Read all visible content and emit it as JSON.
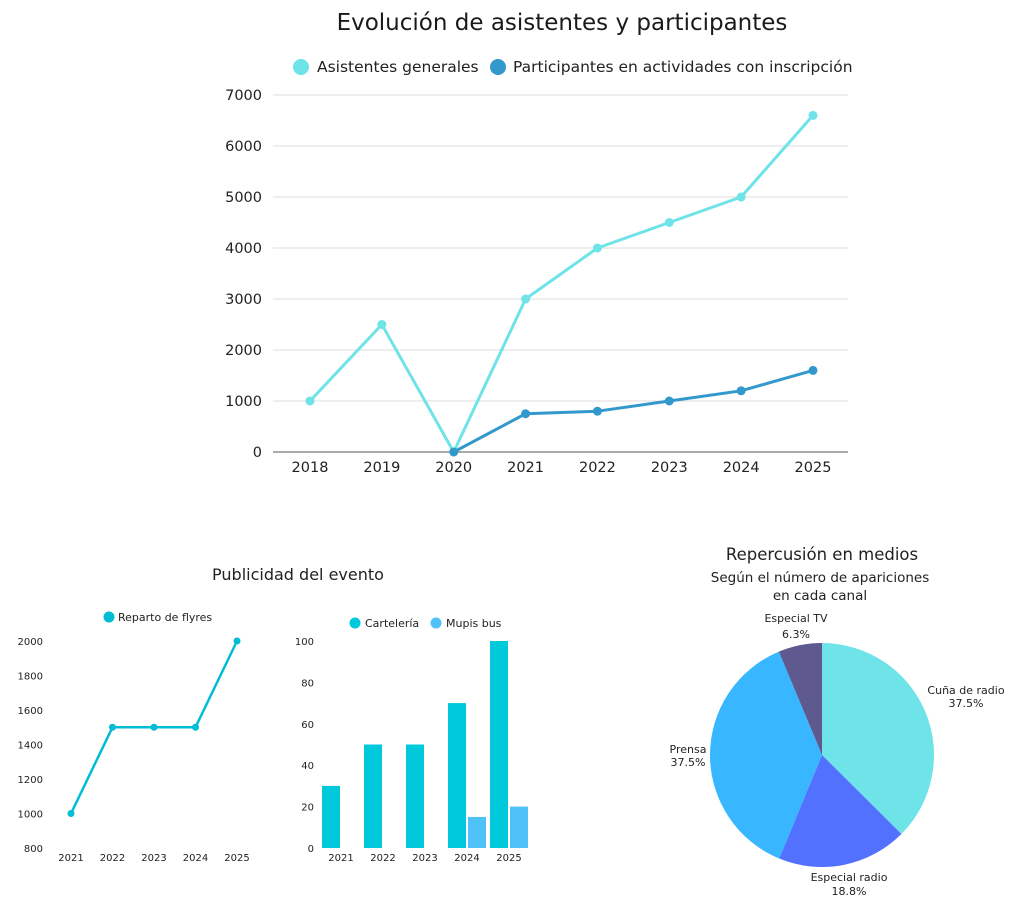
{
  "chart_data": [
    {
      "type": "line",
      "title": "Evolución de asistentes y participantes",
      "x": [
        "2018",
        "2019",
        "2020",
        "2021",
        "2022",
        "2023",
        "2024",
        "2025"
      ],
      "series": [
        {
          "name": "Asistentes generales",
          "color": "#6ee3e8",
          "values": [
            1000,
            2500,
            0,
            3000,
            4000,
            4500,
            5000,
            6600
          ]
        },
        {
          "name": "Participantes en actividades con inscripción",
          "color": "#3399cc",
          "values": [
            null,
            null,
            0,
            750,
            800,
            1000,
            1200,
            1600
          ]
        }
      ],
      "ylim": [
        0,
        7000
      ],
      "yticks": [
        "0",
        "1000",
        "2000",
        "3000",
        "4000",
        "5000",
        "6000",
        "7000"
      ],
      "legend": "top",
      "grid": true
    },
    {
      "type": "line",
      "group_title": "Publicidad del evento",
      "x": [
        "2021",
        "2022",
        "2023",
        "2024",
        "2025"
      ],
      "series": [
        {
          "name": "Reparto de flyres",
          "color": "#00bcd4",
          "values": [
            1000,
            1500,
            1500,
            1500,
            2000
          ]
        }
      ],
      "ylim": [
        800,
        2000
      ],
      "yticks": [
        "800",
        "1000",
        "1200",
        "1400",
        "1600",
        "1800",
        "2000"
      ],
      "legend": "top",
      "grid": false
    },
    {
      "type": "bar",
      "categories": [
        "2021",
        "2022",
        "2023",
        "2024",
        "2025"
      ],
      "series": [
        {
          "name": "Cartelería",
          "color": "#00c9dc",
          "values": [
            30,
            50,
            50,
            70,
            100
          ]
        },
        {
          "name": "Mupis bus",
          "color": "#4fc3f7",
          "values": [
            null,
            null,
            null,
            15,
            20
          ]
        }
      ],
      "ylim": [
        0,
        100
      ],
      "yticks": [
        "0",
        "20",
        "40",
        "60",
        "80",
        "100"
      ],
      "legend": "top",
      "grid": false
    },
    {
      "type": "pie",
      "title": "Repercusión en medios",
      "subtitle_lines": [
        "Según el número de apariciones",
        "en cada canal"
      ],
      "slices": [
        {
          "label": "Cuña de radio",
          "value": 37.5,
          "pct": "37.5%",
          "color": "#6ee3e8"
        },
        {
          "label": "Especial radio",
          "value": 18.8,
          "pct": "18.8%",
          "color": "#5271ff"
        },
        {
          "label": "Prensa",
          "value": 37.5,
          "pct": "37.5%",
          "color": "#38b6ff"
        },
        {
          "label": "Especial TV",
          "value": 6.3,
          "pct": "6.3%",
          "color": "#5e5a8f"
        }
      ]
    }
  ]
}
